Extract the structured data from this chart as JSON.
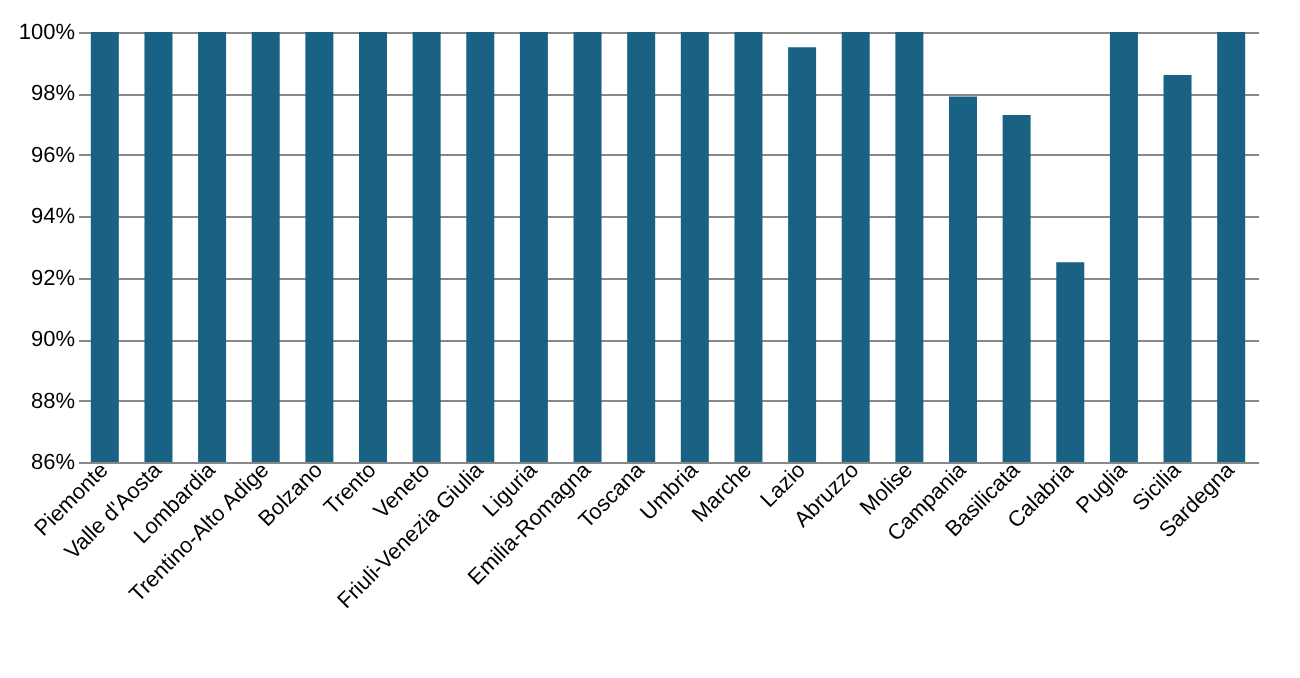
{
  "chart_data": {
    "type": "bar",
    "categories": [
      "Piemonte",
      "Valle d'Aosta",
      "Lombardia",
      "Trentino-Alto Adige",
      "Bolzano",
      "Trento",
      "Veneto",
      "Friuli-Venezia Giulia",
      "Liguria",
      "Emilia-Romagna",
      "Toscana",
      "Umbria",
      "Marche",
      "Lazio",
      "Abruzzo",
      "Molise",
      "Campania",
      "Basilicata",
      "Calabria",
      "Puglia",
      "Sicilia",
      "Sardegna"
    ],
    "values": [
      100,
      100,
      100,
      100,
      100,
      100,
      100,
      100,
      100,
      100,
      100,
      100,
      100,
      99.5,
      100,
      100,
      97.9,
      97.3,
      92.5,
      100,
      98.6,
      100
    ],
    "color": "#1a6283",
    "ylim": [
      86,
      100
    ],
    "yticks": [
      {
        "value": 86,
        "label": "86%"
      },
      {
        "value": 88,
        "label": "88%"
      },
      {
        "value": 90,
        "label": "90%"
      },
      {
        "value": 92,
        "label": "92%"
      },
      {
        "value": 94,
        "label": "94%"
      },
      {
        "value": 96,
        "label": "96%"
      },
      {
        "value": 98,
        "label": "98%"
      },
      {
        "value": 100,
        "label": "100%"
      }
    ],
    "grid": "y"
  }
}
